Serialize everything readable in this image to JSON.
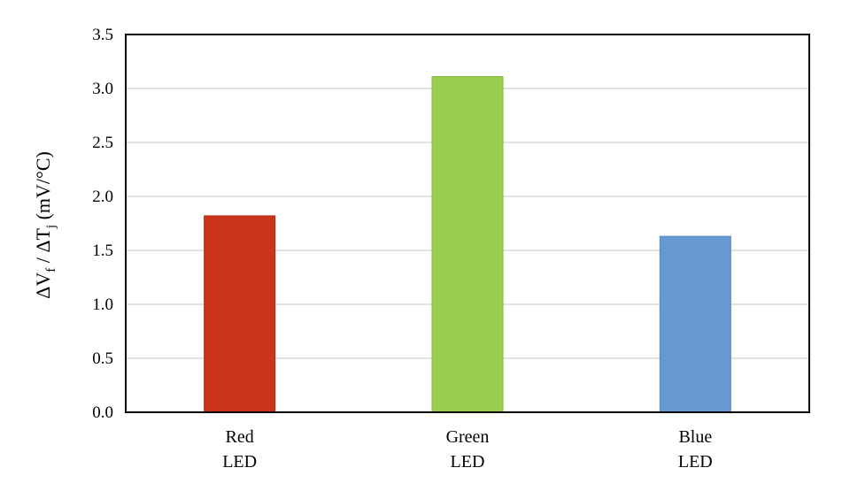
{
  "chart_data": {
    "type": "bar",
    "title": "",
    "xlabel": "",
    "ylabel": {
      "parts": [
        "ΔV",
        "f",
        " / ΔT",
        "j",
        " (mV/°C)"
      ],
      "text": "ΔVf / ΔTj (mV/°C)"
    },
    "categories": [
      {
        "line1": "Red",
        "line2": "LED"
      },
      {
        "line1": "Green",
        "line2": "LED"
      },
      {
        "line1": "Blue",
        "line2": "LED"
      }
    ],
    "values": [
      1.82,
      3.11,
      1.63
    ],
    "colors": [
      "#c9341a",
      "#9acd4d",
      "#6699d1"
    ],
    "border_colors": [
      "#a82a12",
      "#86b83c",
      "#5585bf"
    ],
    "ylim": [
      0,
      3.5
    ],
    "yticks": [
      "0.0",
      "0.5",
      "1.0",
      "1.5",
      "2.0",
      "2.5",
      "3.0",
      "3.5"
    ],
    "grid": true,
    "legend": "none"
  }
}
